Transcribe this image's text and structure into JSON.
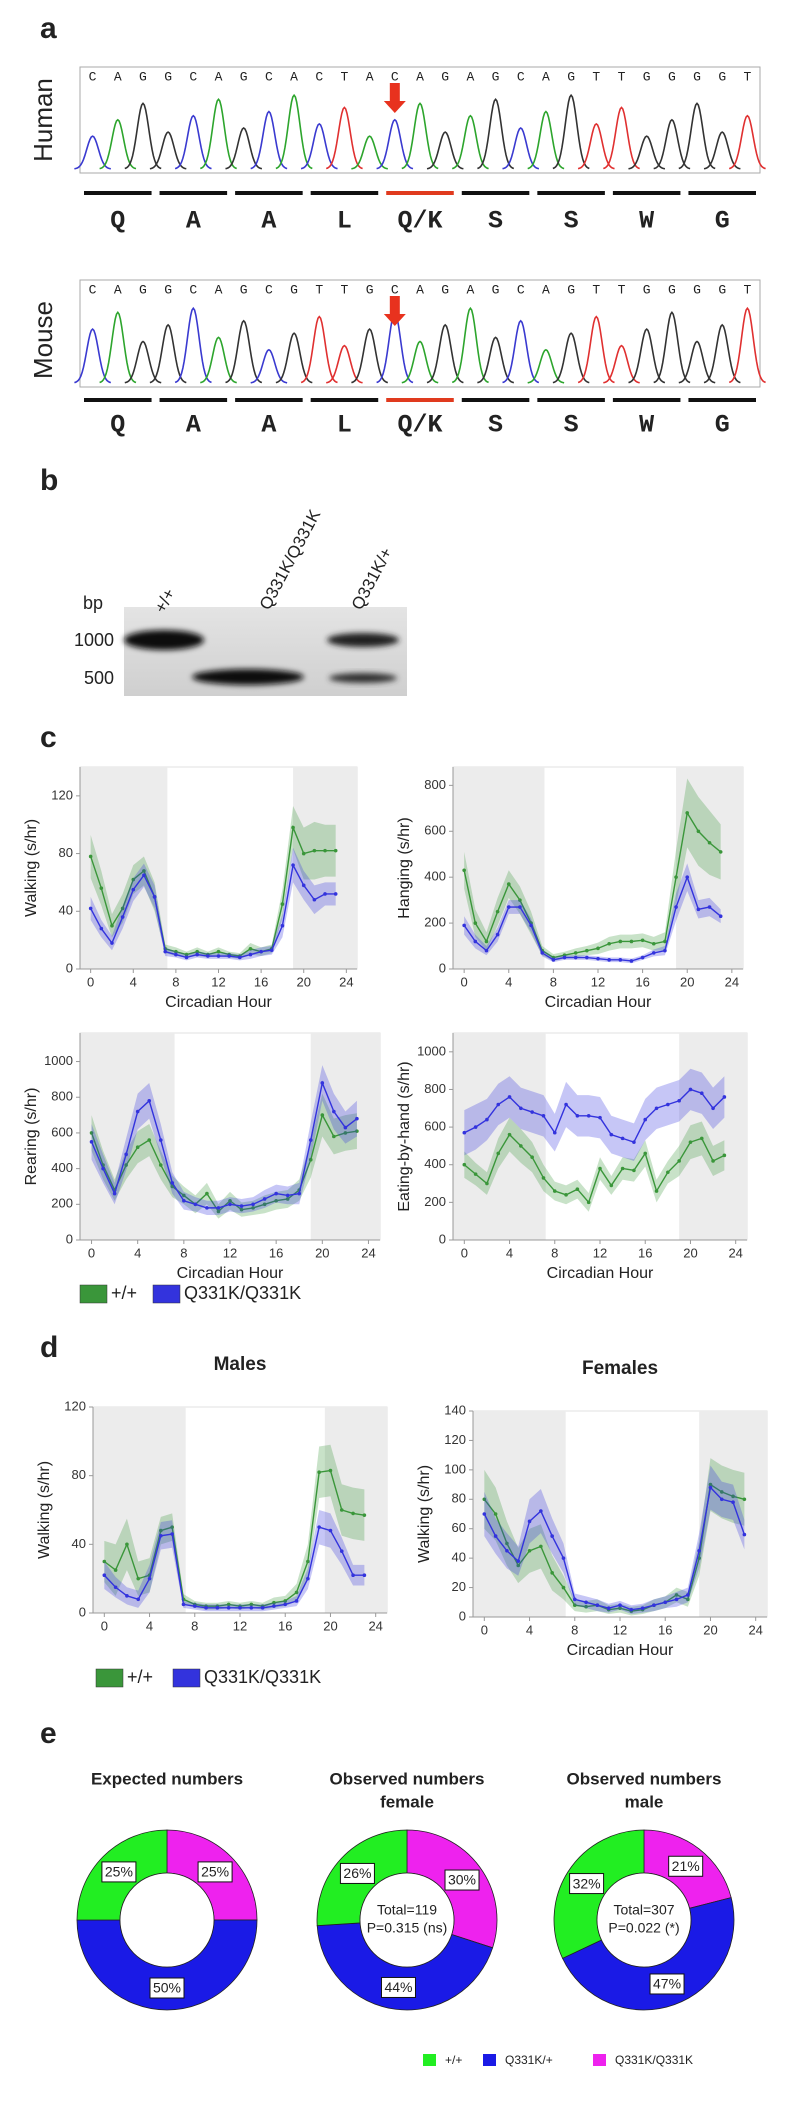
{
  "panel_labels": [
    "a",
    "b",
    "c",
    "d",
    "e"
  ],
  "sequencing": [
    {
      "species": "Human",
      "bases": [
        "C",
        "A",
        "G",
        "G",
        "C",
        "A",
        "G",
        "C",
        "A",
        "C",
        "T",
        "A",
        "C",
        "A",
        "G",
        "A",
        "G",
        "C",
        "A",
        "G",
        "T",
        "T",
        "G",
        "G",
        "G",
        "G",
        "T"
      ],
      "amino_acids": [
        "Q",
        "A",
        "A",
        "L",
        "Q/K",
        "S",
        "S",
        "W",
        "G"
      ]
    },
    {
      "species": "Mouse",
      "bases": [
        "C",
        "A",
        "G",
        "G",
        "C",
        "A",
        "G",
        "C",
        "G",
        "T",
        "T",
        "G",
        "C",
        "A",
        "G",
        "A",
        "G",
        "C",
        "A",
        "G",
        "T",
        "T",
        "G",
        "G",
        "G",
        "G",
        "T"
      ],
      "amino_acids": [
        "Q",
        "A",
        "A",
        "L",
        "Q/K",
        "S",
        "S",
        "W",
        "G"
      ]
    }
  ],
  "gel": {
    "unit": "bp",
    "sizes": [
      1000,
      500
    ],
    "lanes": [
      "+/+",
      "Q331K/Q331K",
      "Q331K/+"
    ]
  },
  "chart_data": [
    {
      "type": "line",
      "y_label": "Walking (s/hr)",
      "x_label": "Circadian Hour",
      "xlim": [
        -1,
        25
      ],
      "ylim": [
        0,
        140
      ],
      "xticks": [
        0,
        4,
        8,
        12,
        16,
        20,
        24
      ],
      "yticks": [
        0,
        40,
        80,
        120
      ],
      "shaded": [
        [
          -1,
          7.2
        ],
        [
          19,
          25
        ]
      ],
      "x": [
        0,
        1,
        2,
        3,
        4,
        5,
        6,
        7,
        8,
        9,
        10,
        11,
        12,
        13,
        14,
        15,
        16,
        17,
        18,
        19,
        20,
        21,
        22,
        23
      ],
      "series": [
        {
          "name": "+/+",
          "color": "#3a963a",
          "values": [
            78,
            56,
            30,
            42,
            62,
            68,
            50,
            14,
            12,
            10,
            12,
            10,
            12,
            10,
            9,
            14,
            12,
            14,
            45,
            98,
            80,
            82,
            82,
            82
          ],
          "errors": [
            15,
            12,
            8,
            10,
            10,
            10,
            10,
            3,
            3,
            2,
            3,
            2,
            3,
            2,
            2,
            4,
            3,
            3,
            10,
            15,
            18,
            20,
            18,
            18
          ]
        },
        {
          "name": "Q331K/Q331K",
          "color": "#3333dd",
          "values": [
            42,
            28,
            18,
            36,
            55,
            65,
            50,
            12,
            10,
            8,
            10,
            9,
            9,
            9,
            8,
            10,
            12,
            13,
            30,
            72,
            58,
            48,
            52,
            52
          ],
          "errors": [
            8,
            6,
            5,
            8,
            8,
            8,
            8,
            3,
            2,
            2,
            2,
            2,
            2,
            2,
            2,
            3,
            3,
            3,
            8,
            12,
            10,
            10,
            8,
            8
          ]
        }
      ]
    },
    {
      "type": "line",
      "y_label": "Hanging (s/hr)",
      "x_label": "Circadian Hour",
      "xlim": [
        -1,
        25
      ],
      "ylim": [
        0,
        880
      ],
      "xticks": [
        0,
        4,
        8,
        12,
        16,
        20,
        24
      ],
      "yticks": [
        0,
        200,
        400,
        600,
        800
      ],
      "shaded": [
        [
          -1,
          7.2
        ],
        [
          19,
          25
        ]
      ],
      "x": [
        0,
        1,
        2,
        3,
        4,
        5,
        6,
        7,
        8,
        9,
        10,
        11,
        12,
        13,
        14,
        15,
        16,
        17,
        18,
        19,
        20,
        21,
        22,
        23
      ],
      "series": [
        {
          "name": "+/+",
          "color": "#3a963a",
          "values": [
            430,
            200,
            120,
            250,
            370,
            300,
            200,
            80,
            50,
            60,
            70,
            80,
            90,
            110,
            120,
            120,
            125,
            110,
            120,
            400,
            680,
            600,
            550,
            510
          ],
          "errors": [
            80,
            60,
            40,
            60,
            60,
            60,
            50,
            20,
            15,
            15,
            20,
            20,
            25,
            30,
            30,
            30,
            30,
            30,
            40,
            120,
            150,
            150,
            140,
            120
          ]
        },
        {
          "name": "Q331K/Q331K",
          "color": "#3333dd",
          "values": [
            190,
            120,
            80,
            150,
            270,
            270,
            190,
            70,
            40,
            50,
            50,
            50,
            45,
            40,
            40,
            35,
            50,
            70,
            80,
            270,
            400,
            260,
            270,
            230
          ],
          "errors": [
            40,
            30,
            20,
            30,
            30,
            30,
            30,
            15,
            10,
            10,
            10,
            10,
            10,
            10,
            10,
            10,
            10,
            15,
            20,
            60,
            60,
            40,
            40,
            30
          ]
        }
      ]
    },
    {
      "type": "line",
      "y_label": "Rearing (s/hr)",
      "x_label": "Circadian Hour",
      "xlim": [
        -1,
        25
      ],
      "ylim": [
        0,
        1160
      ],
      "xticks": [
        0,
        4,
        8,
        12,
        16,
        20,
        24
      ],
      "yticks": [
        0,
        200,
        400,
        600,
        800,
        1000
      ],
      "shaded": [
        [
          -1,
          7.2
        ],
        [
          19,
          25
        ]
      ],
      "x": [
        0,
        1,
        2,
        3,
        4,
        5,
        6,
        7,
        8,
        9,
        10,
        11,
        12,
        13,
        14,
        15,
        16,
        17,
        18,
        19,
        20,
        21,
        22,
        23
      ],
      "series": [
        {
          "name": "+/+",
          "color": "#3a963a",
          "values": [
            600,
            420,
            280,
            420,
            520,
            560,
            420,
            300,
            250,
            200,
            260,
            160,
            220,
            170,
            180,
            200,
            220,
            230,
            280,
            450,
            700,
            580,
            600,
            610
          ],
          "errors": [
            100,
            80,
            60,
            80,
            90,
            90,
            80,
            60,
            50,
            50,
            60,
            40,
            50,
            40,
            40,
            50,
            50,
            50,
            60,
            100,
            120,
            100,
            100,
            100
          ]
        },
        {
          "name": "Q331K/Q331K",
          "color": "#3333dd",
          "values": [
            550,
            400,
            260,
            480,
            720,
            780,
            560,
            320,
            220,
            200,
            180,
            180,
            200,
            190,
            200,
            230,
            260,
            250,
            260,
            560,
            880,
            720,
            630,
            680
          ],
          "errors": [
            100,
            80,
            60,
            90,
            100,
            100,
            90,
            60,
            50,
            40,
            40,
            40,
            40,
            40,
            40,
            50,
            50,
            50,
            60,
            100,
            100,
            100,
            90,
            100
          ]
        }
      ]
    },
    {
      "type": "line",
      "y_label": "Eating-by-hand (s/hr)",
      "x_label": "Circadian Hour",
      "xlim": [
        -1,
        25
      ],
      "ylim": [
        0,
        1100
      ],
      "xticks": [
        0,
        4,
        8,
        12,
        16,
        20,
        24
      ],
      "yticks": [
        0,
        200,
        400,
        600,
        800,
        1000
      ],
      "shaded": [
        [
          -1,
          7.2
        ],
        [
          19,
          25
        ]
      ],
      "x": [
        0,
        1,
        2,
        3,
        4,
        5,
        6,
        7,
        8,
        9,
        10,
        11,
        12,
        13,
        14,
        15,
        16,
        17,
        18,
        19,
        20,
        21,
        22,
        23
      ],
      "series": [
        {
          "name": "+/+",
          "color": "#3a963a",
          "values": [
            400,
            350,
            300,
            460,
            560,
            500,
            440,
            330,
            260,
            240,
            270,
            200,
            380,
            290,
            380,
            370,
            460,
            260,
            360,
            420,
            520,
            540,
            420,
            450
          ],
          "errors": [
            70,
            60,
            60,
            80,
            90,
            90,
            80,
            70,
            50,
            50,
            50,
            50,
            60,
            50,
            60,
            60,
            70,
            60,
            60,
            80,
            90,
            90,
            80,
            80
          ]
        },
        {
          "name": "Q331K/Q331K",
          "color": "#3333dd",
          "values": [
            570,
            600,
            640,
            720,
            760,
            700,
            680,
            660,
            570,
            720,
            660,
            660,
            650,
            560,
            540,
            520,
            640,
            700,
            720,
            740,
            800,
            780,
            700,
            760
          ],
          "errors": [
            120,
            120,
            110,
            110,
            110,
            110,
            110,
            110,
            100,
            120,
            110,
            110,
            110,
            100,
            100,
            100,
            110,
            110,
            110,
            110,
            110,
            110,
            110,
            110
          ]
        }
      ]
    },
    {
      "type": "line",
      "title": "Males",
      "y_label": "Walking (s/hr)",
      "xlim": [
        -1,
        25
      ],
      "ylim": [
        0,
        120
      ],
      "xticks": [
        0,
        4,
        8,
        12,
        16,
        20,
        24
      ],
      "yticks": [
        0,
        40,
        80,
        120
      ],
      "shaded": [
        [
          -1,
          7.2
        ],
        [
          19.5,
          25
        ]
      ],
      "x": [
        0,
        1,
        2,
        3,
        4,
        5,
        6,
        7,
        8,
        9,
        10,
        11,
        12,
        13,
        14,
        15,
        16,
        17,
        18,
        19,
        20,
        21,
        22,
        23
      ],
      "series": [
        {
          "name": "+/+",
          "color": "#3a963a",
          "values": [
            30,
            25,
            40,
            20,
            22,
            48,
            50,
            8,
            5,
            4,
            4,
            5,
            4,
            5,
            4,
            6,
            7,
            12,
            30,
            82,
            83,
            60,
            58,
            57
          ],
          "errors": [
            12,
            15,
            15,
            10,
            10,
            8,
            8,
            3,
            2,
            2,
            2,
            2,
            2,
            2,
            2,
            3,
            3,
            5,
            10,
            15,
            15,
            15,
            15,
            15
          ]
        },
        {
          "name": "Q331K/Q331K",
          "color": "#3333dd",
          "values": [
            22,
            15,
            10,
            8,
            20,
            45,
            46,
            5,
            4,
            3,
            3,
            3,
            3,
            3,
            3,
            4,
            5,
            7,
            20,
            50,
            48,
            36,
            22,
            22
          ],
          "errors": [
            8,
            6,
            5,
            5,
            8,
            8,
            8,
            2,
            2,
            2,
            2,
            2,
            2,
            2,
            2,
            2,
            2,
            3,
            6,
            10,
            10,
            8,
            6,
            6
          ]
        }
      ]
    },
    {
      "type": "line",
      "title": "Females",
      "y_label": "Walking (s/hr)",
      "x_label": "Circadian Hour",
      "xlim": [
        -1,
        25
      ],
      "ylim": [
        0,
        140
      ],
      "xticks": [
        0,
        4,
        8,
        12,
        16,
        20,
        24
      ],
      "yticks": [
        0,
        20,
        40,
        60,
        80,
        100,
        120,
        140
      ],
      "shaded": [
        [
          -1,
          7.2
        ],
        [
          19,
          25
        ]
      ],
      "x": [
        0,
        1,
        2,
        3,
        4,
        5,
        6,
        7,
        8,
        9,
        10,
        11,
        12,
        13,
        14,
        15,
        16,
        17,
        18,
        19,
        20,
        21,
        22,
        23
      ],
      "series": [
        {
          "name": "+/+",
          "color": "#3a963a",
          "values": [
            80,
            70,
            50,
            35,
            45,
            48,
            30,
            20,
            8,
            7,
            8,
            5,
            6,
            4,
            5,
            8,
            10,
            15,
            12,
            40,
            90,
            85,
            82,
            80
          ],
          "errors": [
            20,
            18,
            15,
            12,
            15,
            15,
            12,
            8,
            4,
            4,
            4,
            3,
            3,
            3,
            3,
            4,
            4,
            5,
            5,
            12,
            18,
            18,
            18,
            18
          ]
        },
        {
          "name": "Q331K/Q331K",
          "color": "#3333dd",
          "values": [
            70,
            55,
            45,
            38,
            65,
            72,
            55,
            40,
            12,
            10,
            8,
            6,
            8,
            5,
            6,
            8,
            10,
            12,
            15,
            45,
            88,
            80,
            78,
            56
          ],
          "errors": [
            15,
            12,
            12,
            10,
            15,
            15,
            12,
            10,
            4,
            4,
            4,
            3,
            3,
            3,
            3,
            4,
            4,
            5,
            5,
            12,
            15,
            12,
            12,
            10
          ]
        }
      ]
    },
    {
      "type": "pie",
      "title": "Expected numbers",
      "categories": [
        "+/+",
        "Q331K/+",
        "Q331K/Q331K"
      ],
      "colors": [
        "#22ee22",
        "#1a1ae6",
        "#ee22ee"
      ],
      "values": [
        25,
        50,
        25
      ],
      "value_labels": [
        "25%",
        "50%",
        "25%"
      ]
    },
    {
      "type": "pie",
      "title": "Observed numbers",
      "subtitle": "female",
      "categories": [
        "+/+",
        "Q331K/+",
        "Q331K/Q331K"
      ],
      "colors": [
        "#22ee22",
        "#1a1ae6",
        "#ee22ee"
      ],
      "values": [
        26,
        44,
        30
      ],
      "value_labels": [
        "26%",
        "44%",
        "30%"
      ],
      "annotations": [
        "Total=119",
        "P=0.315 (ns)"
      ]
    },
    {
      "type": "pie",
      "title": "Observed numbers",
      "subtitle": "male",
      "categories": [
        "+/+",
        "Q331K/+",
        "Q331K/Q331K"
      ],
      "colors": [
        "#22ee22",
        "#1a1ae6",
        "#ee22ee"
      ],
      "values": [
        32,
        47,
        21
      ],
      "value_labels": [
        "32%",
        "47%",
        "21%"
      ],
      "annotations": [
        "Total=307",
        "P=0.022 (*)"
      ]
    }
  ]
}
